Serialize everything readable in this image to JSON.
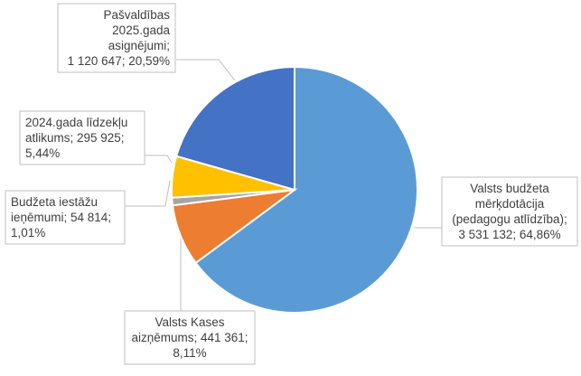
{
  "chart_data": {
    "type": "pie",
    "title": "",
    "start_angle_deg": 0,
    "direction": "clockwise",
    "slices": [
      {
        "name": "Valsts budžeta mērķdotācija (pedagogu atlīdzība)",
        "value": 3531132,
        "percent": 64.86,
        "label_lines": [
          "Valsts budžeta",
          "mērķdotācija",
          "(pedagogu atlīdzība);",
          "3 531 132; 64,86%"
        ],
        "color": "#5B9BD5"
      },
      {
        "name": "Valsts Kases aizņēmums",
        "value": 441361,
        "percent": 8.11,
        "label_lines": [
          "Valsts Kases",
          "aizņēmums; 441 361;",
          "8,11%"
        ],
        "color": "#ED7D31"
      },
      {
        "name": "Budžeta iestāžu ieņēmumi",
        "value": 54814,
        "percent": 1.01,
        "label_lines": [
          "Budžeta iestāžu",
          "ieņēmumi; 54 814;",
          "1,01%"
        ],
        "color": "#A5A5A5"
      },
      {
        "name": "2024.gada līdzekļu atlikums",
        "value": 295925,
        "percent": 5.44,
        "label_lines": [
          "2024.gada līdzekļu",
          "atlikums; 295 925;",
          "5,44%"
        ],
        "color": "#FFC000"
      },
      {
        "name": "Pašvaldības 2025.gada asignējumi",
        "value": 1120647,
        "percent": 20.59,
        "label_lines": [
          "Pašvaldības",
          "2025.gada",
          "asignējumi;",
          "1 120 647; 20,59%"
        ],
        "color": "#4472C4"
      }
    ]
  }
}
